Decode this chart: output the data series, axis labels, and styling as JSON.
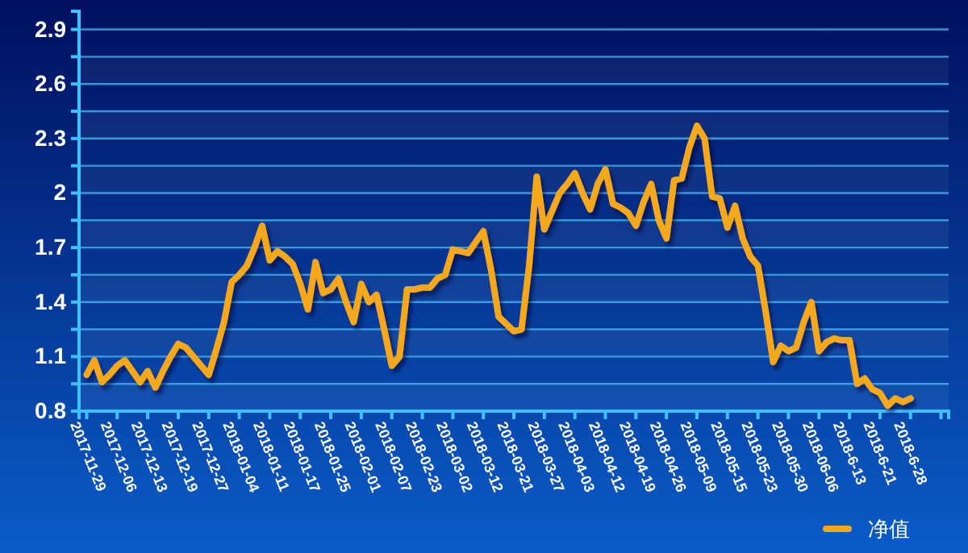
{
  "chart_data": {
    "type": "line",
    "categories": [
      "2017-11-29",
      null,
      null,
      null,
      "2017-12-06",
      null,
      null,
      null,
      "2017-12-13",
      null,
      null,
      null,
      "2017-12-19",
      null,
      null,
      null,
      "2017-12-27",
      null,
      null,
      null,
      "2018-01-04",
      null,
      null,
      null,
      "2018-01-11",
      null,
      null,
      null,
      "2018-01-17",
      null,
      null,
      null,
      "2018-01-25",
      null,
      null,
      null,
      "2018-02-01",
      null,
      null,
      null,
      "2018-02-07",
      null,
      null,
      null,
      "2018-02-23",
      null,
      null,
      null,
      "2018-03-02",
      null,
      null,
      null,
      "2018-03-12",
      null,
      null,
      null,
      "2018-03-21",
      null,
      null,
      null,
      "2018-03-27",
      null,
      null,
      null,
      "2018-04-03",
      null,
      null,
      null,
      "2018-04-12",
      null,
      null,
      null,
      "2018-04-19",
      null,
      null,
      null,
      "2018-04-26",
      null,
      null,
      null,
      "2018-05-09",
      null,
      null,
      null,
      "2018-05-15",
      null,
      null,
      null,
      "2018-05-23",
      null,
      null,
      null,
      "2018-05-30",
      null,
      null,
      null,
      "2018-06-06",
      null,
      null,
      null,
      "2018-6-13",
      null,
      null,
      null,
      "2018-6-21",
      null,
      null,
      null,
      "2018-6-28",
      null,
      null,
      null,
      null,
      null
    ],
    "series": [
      {
        "name": "净值",
        "color": "#f5a81c",
        "values": [
          1.0,
          1.08,
          0.96,
          1.0,
          1.05,
          1.08,
          1.02,
          0.96,
          1.02,
          0.93,
          1.02,
          1.1,
          1.17,
          1.15,
          1.1,
          1.05,
          1.0,
          1.14,
          1.29,
          1.51,
          1.55,
          1.6,
          1.7,
          1.82,
          1.63,
          1.68,
          1.65,
          1.61,
          1.5,
          1.36,
          1.62,
          1.45,
          1.47,
          1.53,
          1.4,
          1.29,
          1.5,
          1.4,
          1.44,
          1.25,
          1.05,
          1.1,
          1.47,
          1.47,
          1.48,
          1.48,
          1.53,
          1.55,
          1.69,
          1.68,
          1.67,
          1.73,
          1.79,
          1.58,
          1.32,
          1.28,
          1.24,
          1.25,
          1.6,
          2.09,
          1.8,
          1.9,
          2.0,
          2.05,
          2.11,
          2.0,
          1.91,
          2.05,
          2.13,
          1.94,
          1.92,
          1.89,
          1.82,
          1.95,
          2.05,
          1.85,
          1.75,
          2.07,
          2.08,
          2.25,
          2.37,
          2.3,
          1.98,
          1.97,
          1.81,
          1.93,
          1.75,
          1.65,
          1.6,
          1.35,
          1.07,
          1.16,
          1.13,
          1.15,
          1.29,
          1.4,
          1.13,
          1.18,
          1.2,
          1.19,
          1.19,
          0.95,
          0.98,
          0.92,
          0.9,
          0.83,
          0.87,
          0.85,
          0.87,
          null,
          null,
          null,
          null,
          null
        ]
      }
    ],
    "ylim": [
      0.8,
      3.0
    ],
    "yticks": [
      0.8,
      {
        "value": 0.95,
        "label": null
      },
      1.1,
      {
        "value": 1.25,
        "label": null
      },
      1.4,
      {
        "value": 1.55,
        "label": null
      },
      1.7,
      {
        "value": 1.85,
        "label": null
      },
      2,
      {
        "value": 2.15,
        "label": null
      },
      2.3,
      {
        "value": 2.45,
        "label": null
      },
      2.6,
      {
        "value": 2.75,
        "label": null
      },
      2.9
    ],
    "grid": "y",
    "legend": "bottom right",
    "line_style": "solid",
    "marker": "none"
  }
}
